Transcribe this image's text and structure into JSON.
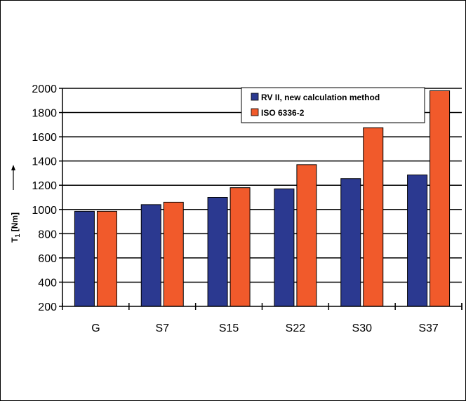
{
  "chart_data": {
    "type": "bar",
    "categories": [
      "G",
      "S7",
      "S15",
      "S22",
      "S30",
      "S37"
    ],
    "series": [
      {
        "name": "RV II, new calculation method",
        "color": "#2b3990",
        "values": [
          985,
          1040,
          1100,
          1170,
          1255,
          1285
        ]
      },
      {
        "name": "ISO 6336-2",
        "color": "#f15a2b",
        "values": [
          985,
          1060,
          1180,
          1370,
          1675,
          1980
        ]
      }
    ],
    "yticks": [
      200,
      400,
      600,
      800,
      1000,
      1200,
      1400,
      1600,
      1800,
      2000
    ],
    "ylim": [
      200,
      2000
    ],
    "ylabel": "T",
    "ylabel_sub": "1",
    "ylabel_unit": " [Nm]",
    "grid": true,
    "legend_position": "top-right"
  }
}
